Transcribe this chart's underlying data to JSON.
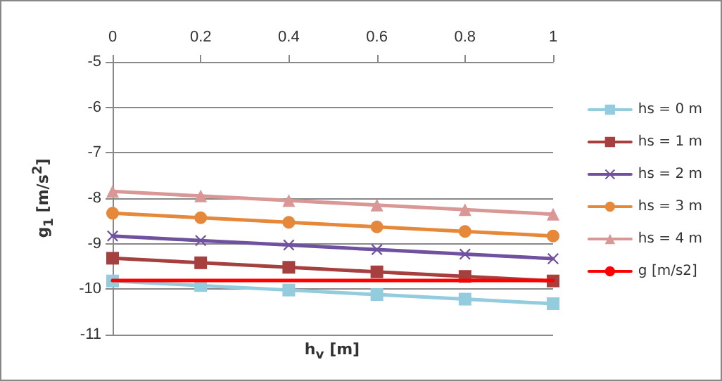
{
  "chart_data": {
    "type": "line",
    "xlabel": "h$_{v}$ [m]",
    "ylabel": "g$_{1}$ [m/s$^{2}$]",
    "x": [
      0,
      0.2,
      0.4,
      0.6,
      0.8,
      1
    ],
    "xlim": [
      0,
      1
    ],
    "xticks": [
      0,
      0.2,
      0.4,
      0.6,
      0.8,
      1
    ],
    "ylim": [
      -11,
      -5
    ],
    "yticks": [
      -11,
      -10,
      -9,
      -8,
      -7,
      -6,
      -5
    ],
    "grid": "y",
    "legend": "right",
    "line_style": "solid",
    "series": [
      {
        "name": "hs = 0 m",
        "color": "#93cddd",
        "marker": "square",
        "values": [
          -9.82,
          -9.92,
          -10.02,
          -10.12,
          -10.22,
          -10.32
        ]
      },
      {
        "name": "hs = 1 m",
        "color": "#a5403f",
        "marker": "square",
        "values": [
          -9.32,
          -9.42,
          -9.52,
          -9.62,
          -9.72,
          -9.82
        ]
      },
      {
        "name": "hs = 2 m",
        "color": "#7051a0",
        "marker": "cross",
        "values": [
          -8.83,
          -8.93,
          -9.03,
          -9.13,
          -9.23,
          -9.33
        ]
      },
      {
        "name": "hs = 3 m",
        "color": "#e6883a",
        "marker": "circle",
        "values": [
          -8.33,
          -8.43,
          -8.53,
          -8.63,
          -8.73,
          -8.83
        ]
      },
      {
        "name": "hs = 4 m",
        "color": "#d99795",
        "marker": "triangle",
        "values": [
          -7.85,
          -7.95,
          -8.05,
          -8.15,
          -8.25,
          -8.35
        ]
      },
      {
        "name": "g [m/s2]",
        "color": "#ff0000",
        "marker": "none",
        "values": [
          -9.81,
          -9.81,
          -9.81,
          -9.81,
          -9.81,
          -9.81
        ]
      }
    ]
  }
}
